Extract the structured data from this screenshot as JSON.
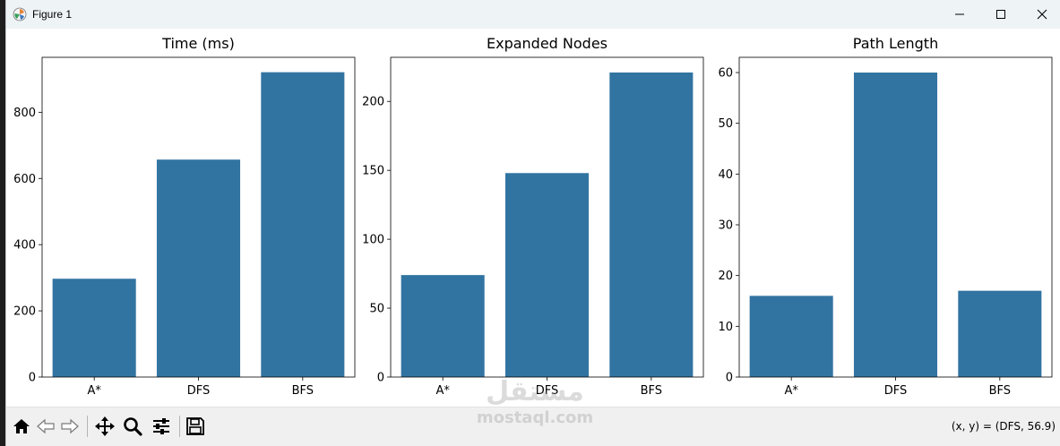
{
  "window": {
    "title": "Figure 1",
    "controls": [
      "minimize-icon",
      "maximize-icon",
      "close-icon"
    ]
  },
  "toolbar": {
    "buttons": [
      "home-icon",
      "back-icon",
      "forward-icon",
      "pan-icon",
      "zoom-icon",
      "configure-subplots-icon",
      "save-icon"
    ],
    "coords": "(x, y) = (DFS, 56.9)"
  },
  "colors": {
    "bar": "#3274a1",
    "titlebar": "#eef3f6",
    "toolbar": "#f0f0f0"
  },
  "watermark": {
    "arabic": "مستقل",
    "latin": "mostaql.com"
  },
  "chart_data": [
    {
      "type": "bar",
      "title": "Time (ms)",
      "categories": [
        "A*",
        "DFS",
        "BFS"
      ],
      "values": [
        297,
        657,
        921
      ],
      "ylim": [
        0,
        966
      ],
      "yticks": [
        0,
        200,
        400,
        600,
        800
      ],
      "xlabel": "",
      "ylabel": ""
    },
    {
      "type": "bar",
      "title": "Expanded Nodes",
      "categories": [
        "A*",
        "DFS",
        "BFS"
      ],
      "values": [
        74,
        148,
        221
      ],
      "ylim": [
        0,
        232
      ],
      "yticks": [
        0,
        50,
        100,
        150,
        200
      ],
      "xlabel": "",
      "ylabel": ""
    },
    {
      "type": "bar",
      "title": "Path Length",
      "categories": [
        "A*",
        "DFS",
        "BFS"
      ],
      "values": [
        16,
        60,
        17
      ],
      "ylim": [
        0,
        63
      ],
      "yticks": [
        0,
        10,
        20,
        30,
        40,
        50,
        60
      ],
      "xlabel": "",
      "ylabel": ""
    }
  ]
}
